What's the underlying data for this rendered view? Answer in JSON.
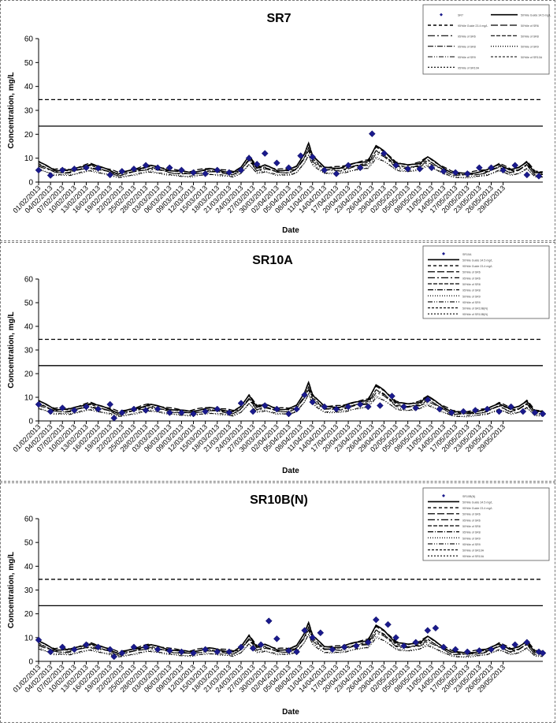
{
  "chart_data": [
    {
      "type": "line",
      "title": "SR7",
      "xlabel": "Date",
      "ylabel": "Concentration, mg/L",
      "ylim": [
        0,
        60
      ],
      "yticks": [
        0,
        10,
        20,
        30,
        40,
        50,
        60
      ],
      "x_tick_labels": [
        "01/02/2013",
        "04/02/2013",
        "07/02/2013",
        "10/02/2013",
        "13/02/2013",
        "16/02/2013",
        "19/02/2013",
        "22/02/2013",
        "25/02/2013",
        "28/02/2013",
        "03/03/2013",
        "06/03/2013",
        "09/03/2013",
        "12/03/2013",
        "15/03/2013",
        "18/03/2013",
        "21/03/2013",
        "24/03/2013",
        "27/03/2013",
        "30/03/2013",
        "02/04/2013",
        "05/04/2013",
        "08/04/2013",
        "11/04/2013",
        "14/04/2013",
        "17/04/2013",
        "20/04/2013",
        "23/04/2013",
        "26/04/2013",
        "29/04/2013",
        "02/05/2013",
        "05/05/2013",
        "08/05/2013",
        "11/05/2013",
        "14/05/2013",
        "17/05/2013",
        "20/05/2013",
        "23/05/2013",
        "26/05/2013",
        "29/05/2013"
      ],
      "legend_placement": "top-right",
      "legend_entries": [
        "SR7",
        "50%ile Guide 34.5 mg/L",
        "95%ile Guide 23.4 mg/L",
        "50%ile of SR6",
        "95%ile of SR6",
        "50%ile of SR8",
        "95%ile of SR8",
        "50%ile of SR9",
        "95%ile of SR9",
        "50%ile of SR10A",
        "95%ile of SR10A"
      ],
      "reference_lines": [
        34.5,
        23.4
      ],
      "measured": [
        {
          "day": 0,
          "value": 5
        },
        {
          "day": 3,
          "value": 2.8
        },
        {
          "day": 6,
          "value": 5
        },
        {
          "day": 9,
          "value": 5.5
        },
        {
          "day": 12,
          "value": 6
        },
        {
          "day": 15,
          "value": 5.8
        },
        {
          "day": 18,
          "value": 3
        },
        {
          "day": 21,
          "value": 4.5
        },
        {
          "day": 24,
          "value": 5.5
        },
        {
          "day": 27,
          "value": 7
        },
        {
          "day": 30,
          "value": 6
        },
        {
          "day": 33,
          "value": 6
        },
        {
          "day": 36,
          "value": 5
        },
        {
          "day": 39,
          "value": 4
        },
        {
          "day": 42,
          "value": 3.5
        },
        {
          "day": 45,
          "value": 5
        },
        {
          "day": 48,
          "value": 4
        },
        {
          "day": 51,
          "value": 5
        },
        {
          "day": 53,
          "value": 10
        },
        {
          "day": 55,
          "value": 7.5
        },
        {
          "day": 57,
          "value": 12
        },
        {
          "day": 60,
          "value": 8
        },
        {
          "day": 63,
          "value": 6
        },
        {
          "day": 66,
          "value": 11
        },
        {
          "day": 69,
          "value": 10.5
        },
        {
          "day": 72,
          "value": 5
        },
        {
          "day": 75,
          "value": 3.5
        },
        {
          "day": 78,
          "value": 7
        },
        {
          "day": 81,
          "value": 6
        },
        {
          "day": 84,
          "value": 20.2
        },
        {
          "day": 87,
          "value": 12
        },
        {
          "day": 90,
          "value": 7
        },
        {
          "day": 93,
          "value": 5.5
        },
        {
          "day": 96,
          "value": 5.5
        },
        {
          "day": 99,
          "value": 6
        },
        {
          "day": 102,
          "value": 4.5
        },
        {
          "day": 105,
          "value": 4
        },
        {
          "day": 108,
          "value": 3.5
        },
        {
          "day": 111,
          "value": 6
        },
        {
          "day": 114,
          "value": 6
        },
        {
          "day": 117,
          "value": 5
        },
        {
          "day": 120,
          "value": 7
        },
        {
          "day": 123,
          "value": 3
        },
        {
          "day": 126,
          "value": 2.5
        }
      ]
    },
    {
      "type": "line",
      "title": "SR10A",
      "xlabel": "Date",
      "ylabel": "Concentration, mg/L",
      "ylim": [
        0,
        60
      ],
      "yticks": [
        0,
        10,
        20,
        30,
        40,
        50,
        60
      ],
      "x_tick_labels": [
        "01/02/2013",
        "04/02/2013",
        "07/02/2013",
        "10/02/2013",
        "13/02/2013",
        "16/02/2013",
        "19/02/2013",
        "22/02/2013",
        "25/02/2013",
        "28/02/2013",
        "03/03/2013",
        "06/03/2013",
        "09/03/2013",
        "12/03/2013",
        "15/03/2013",
        "18/03/2013",
        "21/03/2013",
        "24/03/2013",
        "27/03/2013",
        "30/03/2013",
        "02/04/2013",
        "05/04/2013",
        "08/04/2013",
        "11/04/2013",
        "14/04/2013",
        "17/04/2013",
        "20/04/2013",
        "23/04/2013",
        "26/04/2013",
        "29/04/2013",
        "02/05/2013",
        "05/05/2013",
        "08/05/2013",
        "11/05/2013",
        "14/05/2013",
        "17/05/2013",
        "20/05/2013",
        "23/05/2013",
        "26/05/2013",
        "29/05/2013"
      ],
      "legend_placement": "top-right",
      "legend_entries": [
        "SR10A",
        "50%ile Guide 34.5 mg/L",
        "95%ile Guide 23.4 mg/L",
        "50%ile of SR6",
        "95%ile of SR6",
        "50%ile of SR8",
        "95%ile of SR8",
        "50%ile of SR9",
        "95%ile of SR9",
        "50%ile of SR10B(N)",
        "95%ile of SR10B(N)"
      ],
      "reference_lines": [
        34.5,
        23.4
      ],
      "measured": [
        {
          "day": 0,
          "value": 7
        },
        {
          "day": 3,
          "value": 4
        },
        {
          "day": 6,
          "value": 5.5
        },
        {
          "day": 9,
          "value": 4.5
        },
        {
          "day": 12,
          "value": 6
        },
        {
          "day": 15,
          "value": 5
        },
        {
          "day": 18,
          "value": 7
        },
        {
          "day": 19,
          "value": 1.2
        },
        {
          "day": 21,
          "value": 3.5
        },
        {
          "day": 24,
          "value": 5
        },
        {
          "day": 27,
          "value": 4.5
        },
        {
          "day": 30,
          "value": 5
        },
        {
          "day": 33,
          "value": 3.5
        },
        {
          "day": 36,
          "value": 3.5
        },
        {
          "day": 39,
          "value": 3
        },
        {
          "day": 42,
          "value": 4
        },
        {
          "day": 45,
          "value": 5
        },
        {
          "day": 48,
          "value": 3.5
        },
        {
          "day": 51,
          "value": 7.5
        },
        {
          "day": 54,
          "value": 4
        },
        {
          "day": 57,
          "value": 6.5
        },
        {
          "day": 60,
          "value": 5
        },
        {
          "day": 63,
          "value": 3
        },
        {
          "day": 65,
          "value": 5
        },
        {
          "day": 67,
          "value": 11
        },
        {
          "day": 69,
          "value": 8
        },
        {
          "day": 72,
          "value": 6
        },
        {
          "day": 75,
          "value": 5
        },
        {
          "day": 78,
          "value": 6
        },
        {
          "day": 81,
          "value": 7
        },
        {
          "day": 83,
          "value": 6
        },
        {
          "day": 86,
          "value": 6.5
        },
        {
          "day": 89,
          "value": 10.5
        },
        {
          "day": 92,
          "value": 6
        },
        {
          "day": 95,
          "value": 5.5
        },
        {
          "day": 98,
          "value": 9
        },
        {
          "day": 101,
          "value": 5
        },
        {
          "day": 104,
          "value": 3.5
        },
        {
          "day": 107,
          "value": 4
        },
        {
          "day": 110,
          "value": 4.5
        },
        {
          "day": 113,
          "value": 5
        },
        {
          "day": 116,
          "value": 4
        },
        {
          "day": 119,
          "value": 6
        },
        {
          "day": 122,
          "value": 4
        },
        {
          "day": 125,
          "value": 3.5
        },
        {
          "day": 127,
          "value": 3
        }
      ]
    },
    {
      "type": "line",
      "title": "SR10B(N)",
      "xlabel": "Date",
      "ylabel": "Concentration, mg/L",
      "ylim": [
        0,
        60
      ],
      "yticks": [
        0,
        10,
        20,
        30,
        40,
        50,
        60
      ],
      "x_tick_labels": [
        "01/02/2013",
        "04/02/2013",
        "07/02/2013",
        "10/02/2013",
        "13/02/2013",
        "16/02/2013",
        "19/02/2013",
        "22/02/2013",
        "25/02/2013",
        "28/02/2013",
        "03/03/2013",
        "06/03/2013",
        "09/03/2013",
        "12/03/2013",
        "15/03/2013",
        "18/03/2013",
        "21/03/2013",
        "24/03/2013",
        "27/03/2013",
        "30/03/2013",
        "02/04/2013",
        "05/04/2013",
        "08/04/2013",
        "11/04/2013",
        "14/04/2013",
        "17/04/2013",
        "20/04/2013",
        "23/04/2013",
        "26/04/2013",
        "29/04/2013",
        "02/05/2013",
        "05/05/2013",
        "08/05/2013",
        "11/05/2013",
        "14/05/2013",
        "17/05/2013",
        "20/05/2013",
        "23/05/2013",
        "26/05/2013",
        "29/05/2013"
      ],
      "legend_placement": "top-right",
      "legend_entries": [
        "SR10B(N)",
        "50%ile Guide 34.5 mg/L",
        "95%ile Guide 23.4 mg/L",
        "50%ile of SR6",
        "95%ile of SR6",
        "50%ile of SR8",
        "95%ile of SR8",
        "50%ile of SR9",
        "95%ile of SR9",
        "50%ile of SR10A",
        "95%ile of SR10A"
      ],
      "reference_lines": [
        34.5,
        23.4
      ],
      "measured": [
        {
          "day": 0,
          "value": 9
        },
        {
          "day": 3,
          "value": 4
        },
        {
          "day": 6,
          "value": 6
        },
        {
          "day": 9,
          "value": 5
        },
        {
          "day": 12,
          "value": 7
        },
        {
          "day": 15,
          "value": 6
        },
        {
          "day": 18,
          "value": 5
        },
        {
          "day": 19,
          "value": 2
        },
        {
          "day": 21,
          "value": 3.5
        },
        {
          "day": 24,
          "value": 6
        },
        {
          "day": 27,
          "value": 6
        },
        {
          "day": 30,
          "value": 5
        },
        {
          "day": 33,
          "value": 4.5
        },
        {
          "day": 36,
          "value": 4
        },
        {
          "day": 39,
          "value": 3.5
        },
        {
          "day": 42,
          "value": 5
        },
        {
          "day": 45,
          "value": 4
        },
        {
          "day": 48,
          "value": 4
        },
        {
          "day": 51,
          "value": 6
        },
        {
          "day": 54,
          "value": 5.5
        },
        {
          "day": 56,
          "value": 7
        },
        {
          "day": 58,
          "value": 17
        },
        {
          "day": 60,
          "value": 9.5
        },
        {
          "day": 63,
          "value": 4.5
        },
        {
          "day": 65,
          "value": 4
        },
        {
          "day": 67,
          "value": 13
        },
        {
          "day": 69,
          "value": 10
        },
        {
          "day": 71,
          "value": 12
        },
        {
          "day": 74,
          "value": 5
        },
        {
          "day": 77,
          "value": 6
        },
        {
          "day": 80,
          "value": 6.5
        },
        {
          "day": 83,
          "value": 8
        },
        {
          "day": 85,
          "value": 17.5
        },
        {
          "day": 88,
          "value": 15.5
        },
        {
          "day": 90,
          "value": 10
        },
        {
          "day": 92,
          "value": 6.5
        },
        {
          "day": 95,
          "value": 8
        },
        {
          "day": 98,
          "value": 13
        },
        {
          "day": 100,
          "value": 14
        },
        {
          "day": 102,
          "value": 6
        },
        {
          "day": 105,
          "value": 5
        },
        {
          "day": 108,
          "value": 4
        },
        {
          "day": 111,
          "value": 4.5
        },
        {
          "day": 114,
          "value": 5
        },
        {
          "day": 117,
          "value": 6
        },
        {
          "day": 120,
          "value": 7
        },
        {
          "day": 123,
          "value": 8
        },
        {
          "day": 126,
          "value": 4
        },
        {
          "day": 127,
          "value": 3.5
        }
      ]
    }
  ],
  "chart_styles": {
    "marker_color": "#1a1a8c",
    "line_color": "#000000"
  }
}
